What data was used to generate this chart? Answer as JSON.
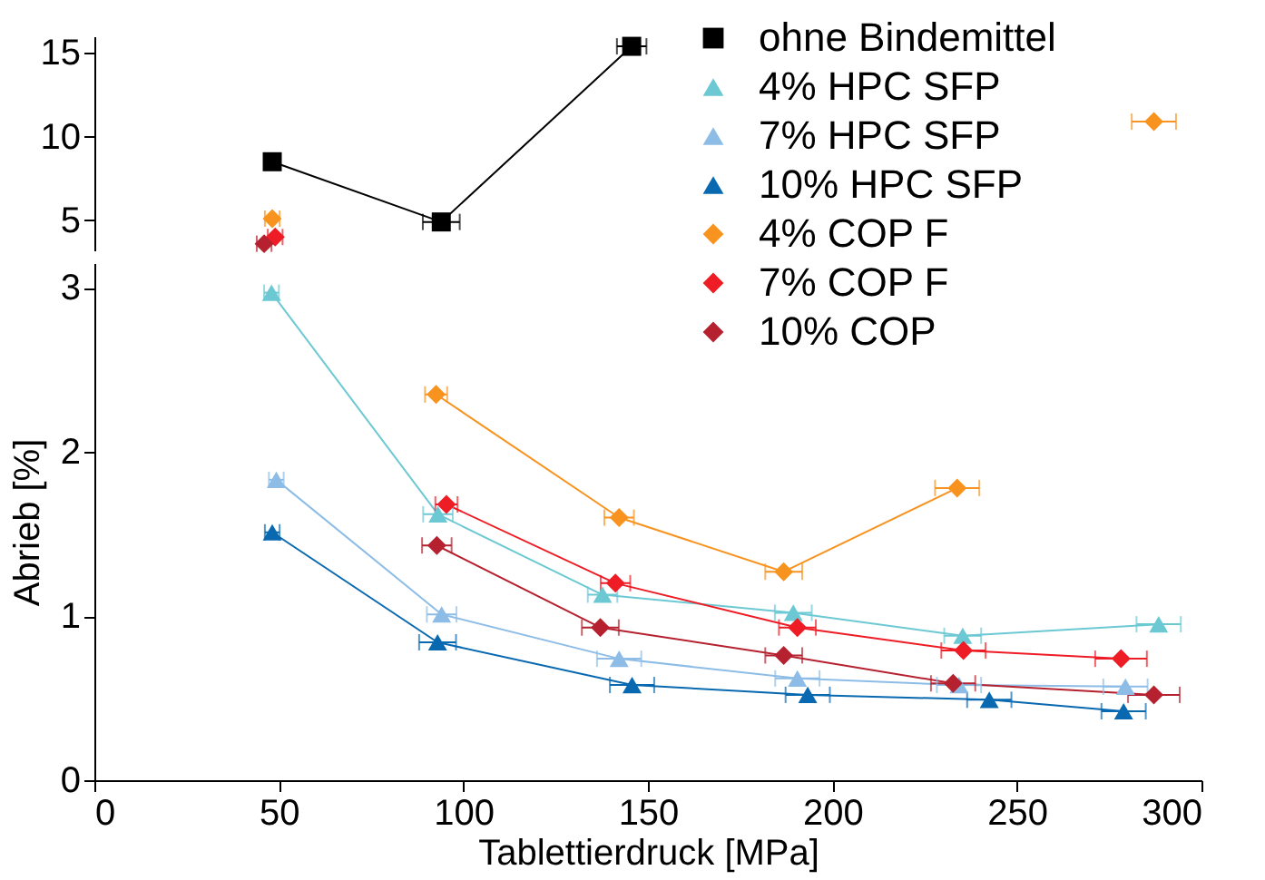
{
  "chart_data": [
    {
      "type": "line",
      "xlim": [
        0,
        300
      ],
      "ylim": [
        3.2,
        16
      ],
      "yticks": [
        5,
        10,
        15
      ],
      "tick_labels": "y",
      "legend": "bottom right",
      "grid": false,
      "line_style": "solid",
      "series": [
        {
          "name": "ohne Bindemittel",
          "color": "#000000",
          "marker": "square",
          "x": [
            48.2,
            94,
            145.6
          ],
          "values": [
            8.5,
            4.9,
            15.4
          ],
          "xerrors": [
            2,
            5,
            4
          ]
        },
        {
          "name": "4% HPC SFP",
          "color": "#6cc9d4",
          "marker": "triangle",
          "x": [
            null,
            null,
            null,
            null,
            null,
            null
          ],
          "values": [
            null,
            null,
            null,
            null,
            null,
            null
          ],
          "xerrors": [
            null,
            null,
            null,
            null,
            null,
            null
          ]
        },
        {
          "name": "7% HPC SFP",
          "color": "#8dbde6",
          "marker": "triangle",
          "x": [
            null,
            null,
            null,
            null,
            null,
            null
          ],
          "values": [
            null,
            null,
            null,
            null,
            null,
            null
          ],
          "xerrors": [
            null,
            null,
            null,
            null,
            null,
            null
          ]
        },
        {
          "name": "10% HPC SFP",
          "color": "#0868b0",
          "marker": "triangle",
          "x": [
            null,
            null,
            null,
            null,
            null,
            null
          ],
          "values": [
            null,
            null,
            null,
            null,
            null,
            null
          ],
          "xerrors": [
            null,
            null,
            null,
            null,
            null,
            null
          ]
        },
        {
          "name": "4% COP F",
          "color": "#f7931e",
          "marker": "diamond",
          "x": [
            48.2,
            null,
            null,
            null,
            null,
            287.1
          ],
          "values": [
            5.1,
            null,
            null,
            null,
            null,
            10.9
          ],
          "xerrors": [
            2,
            null,
            null,
            null,
            null,
            6
          ]
        },
        {
          "name": "7% COP F",
          "color": "#ee1c25",
          "marker": "diamond",
          "x": [
            49,
            null,
            null,
            null,
            null,
            null
          ],
          "values": [
            4.0,
            null,
            null,
            null,
            null,
            null
          ],
          "xerrors": [
            2,
            null,
            null,
            null,
            null,
            null
          ]
        },
        {
          "name": "10% COP",
          "color": "#b5212f",
          "marker": "diamond",
          "x": [
            46,
            null,
            null,
            null,
            null,
            null
          ],
          "values": [
            3.6,
            null,
            null,
            null,
            null,
            null
          ],
          "xerrors": [
            2,
            null,
            null,
            null,
            null,
            null
          ]
        }
      ]
    },
    {
      "type": "line",
      "xlabel": "Tablettierdruck [MPa]",
      "ylabel": "Abrieb [%]",
      "xlim": [
        0,
        300
      ],
      "xticks": [
        0,
        50,
        100,
        150,
        200,
        250,
        300
      ],
      "ylim": [
        0,
        3.15
      ],
      "yticks": [
        0,
        1,
        2,
        3
      ],
      "grid": false,
      "line_style": "solid",
      "series": [
        {
          "color": "#000000",
          "marker": "square",
          "x": [
            null,
            null,
            null
          ],
          "values": [
            null,
            null,
            null
          ],
          "xerrors": [
            null,
            null,
            null
          ]
        },
        {
          "color": "#6cc9d4",
          "marker": "triangle",
          "x": [
            48,
            93.1,
            137.7,
            189.4,
            235.3,
            288.4
          ],
          "values": [
            2.97,
            1.62,
            1.13,
            1.02,
            0.88,
            0.95
          ],
          "xerrors": [
            2,
            4,
            4,
            5,
            5,
            6
          ]
        },
        {
          "color": "#8dbde6",
          "marker": "triangle",
          "x": [
            49.3,
            94.1,
            142.2,
            190.5,
            234.3,
            279.4
          ],
          "values": [
            1.83,
            1.01,
            0.74,
            0.62,
            0.58,
            0.57
          ],
          "xerrors": [
            2,
            4,
            6,
            6,
            6,
            6
          ]
        },
        {
          "color": "#0868b0",
          "marker": "triangle",
          "x": [
            48.2,
            93,
            145.7,
            193.3,
            242.5,
            278.9
          ],
          "values": [
            1.51,
            0.84,
            0.58,
            0.52,
            0.49,
            0.42
          ],
          "xerrors": [
            2,
            5,
            6,
            6,
            6,
            6
          ]
        },
        {
          "color": "#f7931e",
          "marker": "diamond",
          "x": [
            null,
            92.6,
            142.2,
            186.8,
            233.8,
            null
          ],
          "values": [
            null,
            2.35,
            1.6,
            1.27,
            1.78,
            null
          ],
          "xerrors": [
            null,
            3,
            4,
            5,
            6,
            null
          ]
        },
        {
          "color": "#ee1c25",
          "marker": "diamond",
          "x": [
            null,
            95.4,
            141.2,
            190.5,
            235.5,
            278.2
          ],
          "values": [
            null,
            1.68,
            1.2,
            0.93,
            0.79,
            0.74
          ],
          "xerrors": [
            null,
            3,
            4,
            5,
            6,
            7
          ]
        },
        {
          "color": "#b5212f",
          "marker": "diamond",
          "x": [
            null,
            92.8,
            137.1,
            186.8,
            232.7,
            287.1
          ],
          "values": [
            null,
            1.43,
            0.93,
            0.76,
            0.59,
            0.52
          ],
          "xerrors": [
            null,
            4,
            5,
            5,
            6,
            7
          ]
        }
      ]
    }
  ]
}
